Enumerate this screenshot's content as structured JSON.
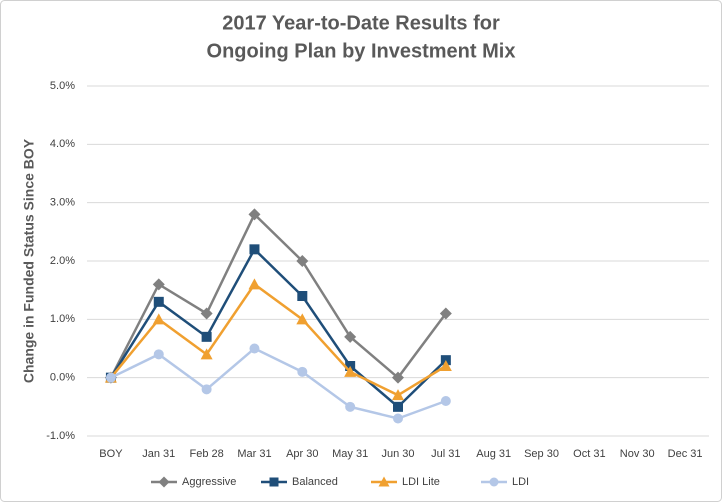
{
  "chart_data": {
    "type": "line",
    "title": [
      "2017 Year-to-Date Results for",
      "Ongoing Plan by Investment Mix"
    ],
    "y_label": "Change in Funded Status Since BOY",
    "categories": [
      "BOY",
      "Jan 31",
      "Feb 28",
      "Mar 31",
      "Apr 30",
      "May 31",
      "Jun 30",
      "Jul 31",
      "Aug 31",
      "Sep 30",
      "Oct 31",
      "Nov 30",
      "Dec 31"
    ],
    "series": [
      {
        "name": "Aggressive",
        "color": "#808080",
        "marker": "diamond",
        "values": [
          0,
          1.6,
          1.1,
          2.8,
          2.0,
          0.7,
          0.0,
          1.1,
          null,
          null,
          null,
          null,
          null
        ]
      },
      {
        "name": "Balanced",
        "color": "#1f4e79",
        "marker": "square",
        "values": [
          0,
          1.3,
          0.7,
          2.2,
          1.4,
          0.2,
          -0.5,
          0.3,
          null,
          null,
          null,
          null,
          null
        ]
      },
      {
        "name": "LDI Lite",
        "color": "#f0a030",
        "marker": "triangle",
        "values": [
          0,
          1.0,
          0.4,
          1.6,
          1.0,
          0.1,
          -0.3,
          0.2,
          null,
          null,
          null,
          null,
          null
        ]
      },
      {
        "name": "LDI",
        "color": "#b4c7e7",
        "marker": "circle",
        "values": [
          0,
          0.4,
          -0.2,
          0.5,
          0.1,
          -0.5,
          -0.7,
          -0.4,
          null,
          null,
          null,
          null,
          null
        ]
      }
    ],
    "ylim": [
      -1,
      5
    ],
    "yticks": [
      {
        "value": -1,
        "label": "-1.0%"
      },
      {
        "value": 0,
        "label": "0.0%"
      },
      {
        "value": 1,
        "label": "1.0%"
      },
      {
        "value": 2,
        "label": "2.0%"
      },
      {
        "value": 3,
        "label": "3.0%"
      },
      {
        "value": 4,
        "label": "4.0%"
      },
      {
        "value": 5,
        "label": "5.0%"
      }
    ],
    "grid": true,
    "legend": "bottom"
  }
}
